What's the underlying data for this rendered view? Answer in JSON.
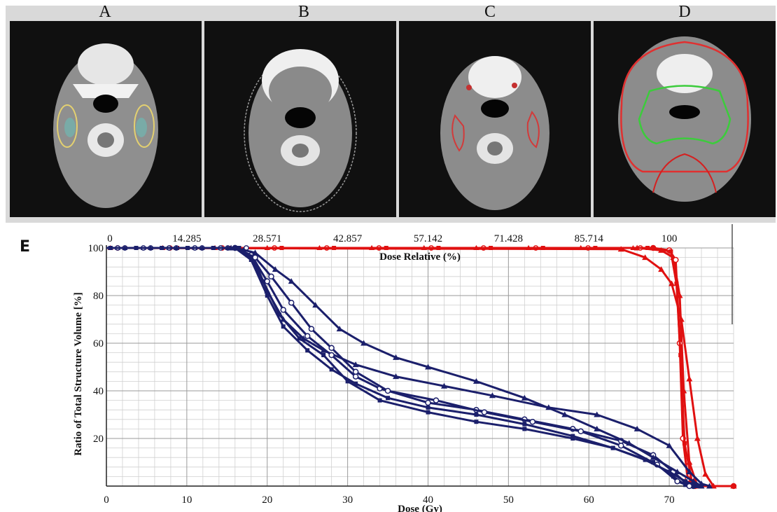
{
  "panels": [
    {
      "letter": "A",
      "contours": "yellow/cyan parotid"
    },
    {
      "letter": "B",
      "contours": "body outline"
    },
    {
      "letter": "C",
      "contours": "red node"
    },
    {
      "letter": "D",
      "contours": "red/green targets"
    }
  ],
  "panel_e_label": "E",
  "colors": {
    "oar": "#1b1f6b",
    "target": "#e01010",
    "grid_major": "#9a9a9a",
    "grid_minor": "#d0d0d0"
  },
  "chart_data": {
    "type": "line",
    "title": "",
    "xlabel": "Dose (Gy)",
    "ylabel": "Ratio of Total Structure Volume [%]",
    "top_axis_label": "Dose Relative (%)",
    "xlim": [
      0,
      78
    ],
    "ylim": [
      0,
      100
    ],
    "x_ticks": [
      0,
      10,
      20,
      30,
      40,
      50,
      60,
      70
    ],
    "y_ticks": [
      20,
      40,
      60,
      80,
      100
    ],
    "top_ticks": [
      {
        "label": "0",
        "x": 0
      },
      {
        "label": "14.285",
        "x": 10
      },
      {
        "label": "28.571",
        "x": 20
      },
      {
        "label": "42.857",
        "x": 30
      },
      {
        "label": "57.142",
        "x": 40
      },
      {
        "label": "71.428",
        "x": 50
      },
      {
        "label": "85.714",
        "x": 60
      },
      {
        "label": "100",
        "x": 70
      }
    ],
    "grid": true,
    "series": [
      {
        "group": "target",
        "marker": "triangle",
        "points": [
          [
            0,
            100
          ],
          [
            66,
            100
          ],
          [
            69,
            99
          ],
          [
            70.5,
            96
          ],
          [
            71.3,
            80
          ],
          [
            71.8,
            40
          ],
          [
            72.5,
            10
          ],
          [
            73.5,
            0
          ],
          [
            78,
            0
          ]
        ]
      },
      {
        "group": "target",
        "marker": "circle",
        "points": [
          [
            0,
            100
          ],
          [
            68,
            100
          ],
          [
            70,
            99
          ],
          [
            70.8,
            95
          ],
          [
            71.3,
            60
          ],
          [
            71.7,
            20
          ],
          [
            72.3,
            3
          ],
          [
            73.2,
            0
          ],
          [
            78,
            0
          ]
        ]
      },
      {
        "group": "target",
        "marker": "square",
        "points": [
          [
            0,
            100
          ],
          [
            68,
            100
          ],
          [
            70.2,
            98.5
          ],
          [
            70.9,
            85
          ],
          [
            71.4,
            55
          ],
          [
            71.9,
            18
          ],
          [
            72.8,
            2
          ],
          [
            74,
            0
          ],
          [
            78,
            0
          ]
        ]
      },
      {
        "group": "target",
        "marker": "triangle",
        "points": [
          [
            0,
            100
          ],
          [
            64,
            99.5
          ],
          [
            67,
            96
          ],
          [
            69,
            91
          ],
          [
            70.3,
            85
          ],
          [
            71.5,
            70
          ],
          [
            72.5,
            45
          ],
          [
            73.5,
            20
          ],
          [
            74.5,
            5
          ],
          [
            75.5,
            0
          ],
          [
            78,
            0
          ]
        ]
      },
      {
        "group": "oar",
        "marker": "triangle",
        "points": [
          [
            0,
            100
          ],
          [
            15.5,
            100
          ],
          [
            17,
            99
          ],
          [
            18.5,
            94
          ],
          [
            20,
            82
          ],
          [
            22,
            70
          ],
          [
            24.5,
            62
          ],
          [
            27,
            57
          ],
          [
            31,
            51
          ],
          [
            36,
            46
          ],
          [
            42,
            42
          ],
          [
            48,
            38
          ],
          [
            55,
            33
          ],
          [
            61,
            30
          ],
          [
            66,
            24
          ],
          [
            70,
            17
          ],
          [
            72.5,
            6
          ],
          [
            74,
            1
          ],
          [
            75,
            0
          ]
        ]
      },
      {
        "group": "oar",
        "marker": "circle",
        "points": [
          [
            0,
            100
          ],
          [
            16,
            100
          ],
          [
            18,
            97
          ],
          [
            20,
            86
          ],
          [
            22,
            74
          ],
          [
            25,
            63
          ],
          [
            28,
            55
          ],
          [
            31,
            46
          ],
          [
            34,
            41
          ],
          [
            40,
            35
          ],
          [
            46,
            32
          ],
          [
            52,
            28
          ],
          [
            58,
            24
          ],
          [
            64,
            19
          ],
          [
            68,
            13
          ],
          [
            70.5,
            6
          ],
          [
            72,
            1.5
          ],
          [
            73,
            0
          ]
        ]
      },
      {
        "group": "oar",
        "marker": "square",
        "points": [
          [
            0,
            100
          ],
          [
            16,
            100
          ],
          [
            18,
            96
          ],
          [
            19.5,
            86
          ],
          [
            21.5,
            72
          ],
          [
            24,
            62
          ],
          [
            27,
            55
          ],
          [
            30,
            44
          ],
          [
            34,
            36
          ],
          [
            40,
            31
          ],
          [
            46,
            27
          ],
          [
            52,
            24
          ],
          [
            58,
            20
          ],
          [
            63,
            16
          ],
          [
            68,
            10
          ],
          [
            70.5,
            4
          ],
          [
            72,
            0.5
          ],
          [
            73,
            0
          ]
        ]
      },
      {
        "group": "oar",
        "marker": "circle",
        "points": [
          [
            0,
            100
          ],
          [
            16,
            100
          ],
          [
            18.5,
            96
          ],
          [
            20.5,
            88
          ],
          [
            23,
            77
          ],
          [
            25.5,
            66
          ],
          [
            28,
            58
          ],
          [
            31,
            48
          ],
          [
            35,
            40
          ],
          [
            41,
            36
          ],
          [
            47,
            31
          ],
          [
            53,
            27
          ],
          [
            59,
            23
          ],
          [
            64,
            17
          ],
          [
            68.5,
            9
          ],
          [
            71,
            2
          ],
          [
            72.5,
            0
          ]
        ]
      },
      {
        "group": "oar",
        "marker": "triangle",
        "points": [
          [
            0,
            100
          ],
          [
            16,
            100
          ],
          [
            18.5,
            98
          ],
          [
            21,
            91
          ],
          [
            23,
            86
          ],
          [
            26,
            76
          ],
          [
            29,
            66
          ],
          [
            32,
            60
          ],
          [
            36,
            54
          ],
          [
            40,
            50
          ],
          [
            46,
            44
          ],
          [
            52,
            37
          ],
          [
            57,
            30
          ],
          [
            61,
            24
          ],
          [
            65,
            18
          ],
          [
            68,
            12
          ],
          [
            71,
            6
          ],
          [
            73,
            2
          ],
          [
            74,
            0
          ]
        ]
      },
      {
        "group": "oar",
        "marker": "square",
        "points": [
          [
            0,
            100
          ],
          [
            16,
            100
          ],
          [
            18,
            95
          ],
          [
            20,
            80
          ],
          [
            22,
            67
          ],
          [
            25,
            57
          ],
          [
            28,
            49
          ],
          [
            31,
            43
          ],
          [
            35,
            37
          ],
          [
            40,
            33
          ],
          [
            46,
            30
          ],
          [
            52,
            26
          ],
          [
            58,
            21
          ],
          [
            63,
            16
          ],
          [
            67,
            11
          ],
          [
            70,
            6
          ],
          [
            72,
            2
          ],
          [
            73.5,
            0
          ]
        ]
      }
    ]
  }
}
